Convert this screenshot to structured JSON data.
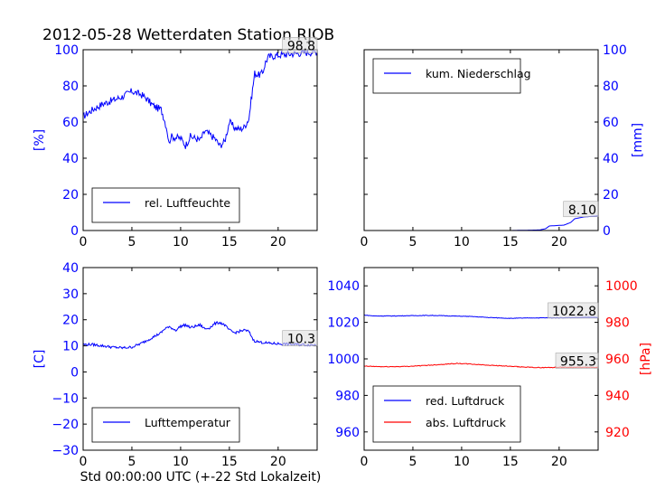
{
  "figure": {
    "title": "2012-05-28 Wetterdaten Station RJOB",
    "xlabel": "Std 00:00:00 UTC (+-22 Std Lokalzeit)"
  },
  "colors": {
    "blue": "#0000ff",
    "red": "#ff0000",
    "axis": "#000000",
    "label_box": "#e0e0e0"
  },
  "chart_data": [
    {
      "id": "humidity",
      "type": "line",
      "xlim": [
        0,
        24
      ],
      "ylim": [
        0,
        100
      ],
      "xticks": [
        0,
        5,
        10,
        15,
        20
      ],
      "yticks": [
        0,
        20,
        40,
        60,
        80,
        100
      ],
      "ylabel": "[%]",
      "ylabel_color": "#0000ff",
      "ytick_color": "#0000ff",
      "yaxis_side": "left",
      "last_value_label": "98.8",
      "last_value": 98.8,
      "legend_position": "lower-left",
      "series": [
        {
          "name": "rel. Luftfeuchte",
          "color": "#0000ff",
          "noise": 2,
          "points": [
            [
              0,
              63
            ],
            [
              0.5,
              65
            ],
            [
              1,
              67
            ],
            [
              2,
              70
            ],
            [
              3,
              72
            ],
            [
              4,
              74
            ],
            [
              5,
              77
            ],
            [
              5.5,
              76
            ],
            [
              6,
              75
            ],
            [
              6.5,
              73
            ],
            [
              7,
              70
            ],
            [
              7.5,
              68
            ],
            [
              8,
              67
            ],
            [
              8.3,
              62
            ],
            [
              8.6,
              56
            ],
            [
              8.8,
              48
            ],
            [
              9,
              52
            ],
            [
              10,
              51
            ],
            [
              10.5,
              47
            ],
            [
              11,
              52
            ],
            [
              12,
              50
            ],
            [
              12.5,
              55
            ],
            [
              13,
              53
            ],
            [
              13.5,
              51
            ],
            [
              14,
              47
            ],
            [
              14.5,
              49
            ],
            [
              15,
              60
            ],
            [
              15.5,
              57
            ],
            [
              16,
              56
            ],
            [
              16.5,
              57
            ],
            [
              17,
              62
            ],
            [
              17.3,
              75
            ],
            [
              17.6,
              87
            ],
            [
              18,
              86
            ],
            [
              18.4,
              87
            ],
            [
              18.7,
              93
            ],
            [
              19,
              96
            ],
            [
              20,
              97
            ],
            [
              21,
              97.5
            ],
            [
              22,
              98
            ],
            [
              23,
              98.5
            ],
            [
              24,
              98.8
            ]
          ]
        }
      ]
    },
    {
      "id": "precipitation",
      "type": "line",
      "xlim": [
        0,
        24
      ],
      "ylim": [
        0,
        100
      ],
      "xticks": [
        0,
        5,
        10,
        15,
        20
      ],
      "yticks": [
        0,
        20,
        40,
        60,
        80,
        100
      ],
      "ylabel": "[mm]",
      "ylabel_color": "#0000ff",
      "ytick_color": "#0000ff",
      "yaxis_side": "right",
      "last_value_label": "8.10",
      "last_value": 8.1,
      "legend_position": "upper-left",
      "series": [
        {
          "name": "kum. Niederschlag",
          "color": "#0000ff",
          "noise": 0,
          "points": [
            [
              0,
              0
            ],
            [
              15,
              0
            ],
            [
              18,
              0.3
            ],
            [
              18.6,
              1
            ],
            [
              19,
              2.5
            ],
            [
              20.5,
              3
            ],
            [
              21.2,
              4.5
            ],
            [
              21.6,
              6.5
            ],
            [
              22.5,
              7.5
            ],
            [
              24,
              8.1
            ]
          ]
        }
      ]
    },
    {
      "id": "temperature",
      "type": "line",
      "xlim": [
        0,
        24
      ],
      "ylim": [
        -30,
        40
      ],
      "xticks": [
        0,
        5,
        10,
        15,
        20
      ],
      "yticks": [
        -30,
        -20,
        -10,
        0,
        10,
        20,
        30,
        40
      ],
      "ylabel": "[C]",
      "ylabel_color": "#0000ff",
      "ytick_color": "#0000ff",
      "yaxis_side": "left",
      "last_value_label": "10.3",
      "last_value": 10.3,
      "legend_position": "lower-left",
      "series": [
        {
          "name": "Lufttemperatur",
          "color": "#0000ff",
          "noise": 0.5,
          "points": [
            [
              0,
              10.5
            ],
            [
              1,
              10.5
            ],
            [
              2,
              10
            ],
            [
              3,
              9.5
            ],
            [
              4,
              9.2
            ],
            [
              5,
              9.5
            ],
            [
              6,
              11
            ],
            [
              7,
              13
            ],
            [
              8,
              15
            ],
            [
              8.5,
              17
            ],
            [
              9,
              17
            ],
            [
              9.5,
              16
            ],
            [
              10,
              17.5
            ],
            [
              10.5,
              18
            ],
            [
              11,
              17
            ],
            [
              12,
              18
            ],
            [
              12.5,
              16.5
            ],
            [
              13,
              17
            ],
            [
              13.5,
              18.5
            ],
            [
              14,
              19
            ],
            [
              14.5,
              18
            ],
            [
              15,
              16
            ],
            [
              15.5,
              15
            ],
            [
              16,
              15.5
            ],
            [
              16.5,
              16
            ],
            [
              17,
              15.5
            ],
            [
              17.5,
              12
            ],
            [
              18,
              11.5
            ],
            [
              19,
              11
            ],
            [
              20,
              10.8
            ],
            [
              22,
              10.5
            ],
            [
              24,
              10.3
            ]
          ]
        }
      ]
    },
    {
      "id": "pressure",
      "type": "line",
      "xlim": [
        0,
        24
      ],
      "ylim": [
        950,
        1050
      ],
      "xticks": [
        0,
        5,
        10,
        15,
        20
      ],
      "yticks": [
        960,
        980,
        1000,
        1020,
        1040
      ],
      "ytick_color": "#0000ff",
      "yaxis_side": "left",
      "ylim2": [
        910,
        1010
      ],
      "yticks2": [
        920,
        940,
        960,
        980,
        1000
      ],
      "ylabel2": "[hPa]",
      "ylabel2_color": "#ff0000",
      "ytick2_color": "#ff0000",
      "legend_position": "lower-left",
      "series": [
        {
          "name": "red. Luftdruck",
          "color": "#0000ff",
          "axis": "left",
          "noise": 0.15,
          "points": [
            [
              0,
              1024
            ],
            [
              1,
              1023.5
            ],
            [
              3,
              1023.5
            ],
            [
              5,
              1023.7
            ],
            [
              7,
              1023.8
            ],
            [
              9,
              1023.5
            ],
            [
              11,
              1023.2
            ],
            [
              13,
              1022.6
            ],
            [
              15,
              1022.2
            ],
            [
              17,
              1022.4
            ],
            [
              19,
              1022.5
            ],
            [
              21,
              1022.6
            ],
            [
              24,
              1022.8
            ]
          ],
          "last_value_label": "1022.8",
          "last_value": 1022.8
        },
        {
          "name": "abs. Luftdruck",
          "color": "#ff0000",
          "axis": "right",
          "noise": 0.2,
          "points": [
            [
              0,
              956
            ],
            [
              2,
              955.7
            ],
            [
              4,
              955.8
            ],
            [
              6,
              956.3
            ],
            [
              8,
              957
            ],
            [
              9.5,
              957.5
            ],
            [
              10.5,
              957.3
            ],
            [
              12,
              956.8
            ],
            [
              14,
              956.2
            ],
            [
              16,
              955.6
            ],
            [
              18,
              955.2
            ],
            [
              20,
              955.4
            ],
            [
              24,
              955.3
            ]
          ],
          "last_value_label": "955.3",
          "last_value": 955.3
        }
      ]
    }
  ]
}
